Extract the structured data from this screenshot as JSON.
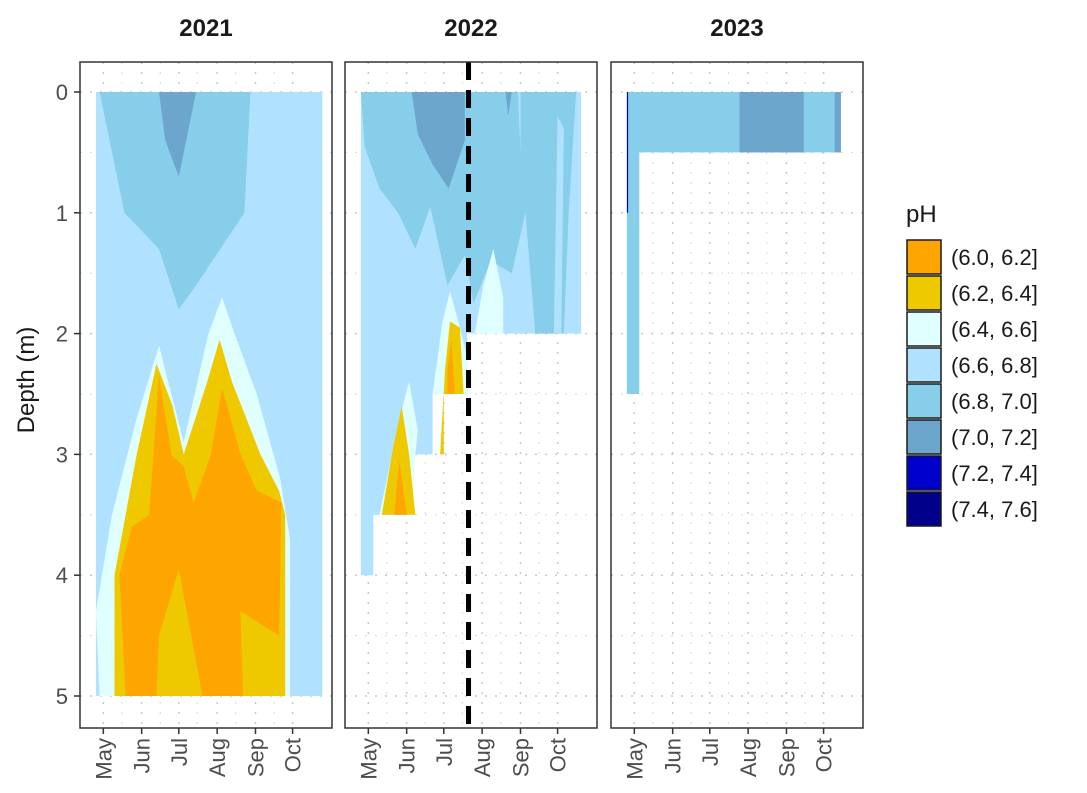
{
  "chart_data": {
    "type": "heatmap",
    "description_kind": "faceted filled contour plot",
    "ylabel": "Depth (m)",
    "y_axis": {
      "range": [
        0,
        5
      ],
      "reversed": true,
      "ticks": [
        0,
        1,
        2,
        3,
        4,
        5
      ]
    },
    "x_axis": {
      "months": [
        "May",
        "Jun",
        "Jul",
        "Aug",
        "Sep",
        "Oct"
      ]
    },
    "grid": "dotted",
    "legend": {
      "title": "pH",
      "position": "right",
      "bins": [
        {
          "label": "(6.0, 6.2]",
          "color": "#FFA500"
        },
        {
          "label": "(6.2, 6.4]",
          "color": "#EEC900"
        },
        {
          "label": "(6.4, 6.6]",
          "color": "#E0FFFF"
        },
        {
          "label": "(6.6, 6.8]",
          "color": "#B0E2FF"
        },
        {
          "label": "(6.8, 7.0]",
          "color": "#87CEEB"
        },
        {
          "label": "(7.0, 7.2]",
          "color": "#6CA6CD"
        },
        {
          "label": "(7.2, 7.4]",
          "color": "#0000CD"
        },
        {
          "label": "(7.4, 7.6]",
          "color": "#00008B"
        }
      ]
    },
    "panels": [
      {
        "title": "2021",
        "max_depth_by_date": [
          {
            "date": "2021-04-25",
            "depth": 5.0
          },
          {
            "date": "2021-10-25",
            "depth": 5.0
          }
        ],
        "regions": [
          {
            "ph_bin": "(6.6, 6.8]",
            "polygon": [
              [
                "2021-04-25",
                0
              ],
              [
                "2021-10-25",
                0
              ],
              [
                "2021-10-25",
                5
              ],
              [
                "2021-04-25",
                5
              ]
            ]
          },
          {
            "ph_bin": "(6.8, 7.0]",
            "polygon": [
              [
                "2021-04-28",
                0
              ],
              [
                "2021-08-28",
                0
              ],
              [
                "2021-08-23",
                1.0
              ],
              [
                "2021-07-15",
                1.6
              ],
              [
                "2021-07-01",
                1.8
              ],
              [
                "2021-06-15",
                1.3
              ],
              [
                "2021-05-18",
                1.0
              ],
              [
                "2021-05-08",
                0.5
              ]
            ]
          },
          {
            "ph_bin": "(7.0, 7.2]",
            "polygon": [
              [
                "2021-06-15",
                0
              ],
              [
                "2021-07-15",
                0
              ],
              [
                "2021-07-01",
                0.7
              ],
              [
                "2021-06-20",
                0.4
              ]
            ]
          },
          {
            "ph_bin": "(6.6, 6.8]",
            "polygon": [
              [
                "2021-09-17",
                0
              ],
              [
                "2021-09-20",
                0
              ],
              [
                "2021-09-18",
                0.35
              ]
            ]
          },
          {
            "ph_bin": "(6.4, 6.6]",
            "polygon": [
              [
                "2021-04-25",
                4.3
              ],
              [
                "2021-05-08",
                3.5
              ],
              [
                "2021-05-28",
                2.7
              ],
              [
                "2021-06-15",
                2.1
              ],
              [
                "2021-07-05",
                2.9
              ],
              [
                "2021-07-25",
                2.0
              ],
              [
                "2021-08-05",
                1.7
              ],
              [
                "2021-08-15",
                2.0
              ],
              [
                "2021-09-02",
                2.5
              ],
              [
                "2021-09-21",
                3.2
              ],
              [
                "2021-09-29",
                3.7
              ],
              [
                "2021-09-29",
                5.0
              ],
              [
                "2021-04-28",
                5.0
              ]
            ]
          },
          {
            "ph_bin": "(6.2, 6.4]",
            "polygon": [
              [
                "2021-05-10",
                4.0
              ],
              [
                "2021-05-28",
                3.0
              ],
              [
                "2021-06-13",
                2.25
              ],
              [
                "2021-06-26",
                2.6
              ],
              [
                "2021-07-05",
                3.0
              ],
              [
                "2021-07-24",
                2.4
              ],
              [
                "2021-08-03",
                2.05
              ],
              [
                "2021-08-13",
                2.4
              ],
              [
                "2021-09-05",
                3.0
              ],
              [
                "2021-09-20",
                3.3
              ],
              [
                "2021-09-25",
                3.5
              ],
              [
                "2021-09-25",
                5.0
              ],
              [
                "2021-05-10",
                5.0
              ]
            ]
          },
          {
            "ph_bin": "(6.0, 6.2]",
            "polygon": [
              [
                "2021-05-14",
                4.0
              ],
              [
                "2021-05-24",
                3.6
              ],
              [
                "2021-06-07",
                3.5
              ],
              [
                "2021-06-15",
                2.35
              ],
              [
                "2021-06-25",
                3.0
              ],
              [
                "2021-07-05",
                3.1
              ],
              [
                "2021-07-13",
                3.4
              ],
              [
                "2021-07-27",
                3.0
              ],
              [
                "2021-08-05",
                2.45
              ],
              [
                "2021-08-20",
                3.0
              ],
              [
                "2021-09-02",
                3.3
              ],
              [
                "2021-09-22",
                3.4
              ],
              [
                "2021-09-20",
                4.5
              ],
              [
                "2021-08-20",
                4.3
              ],
              [
                "2021-08-22",
                5.0
              ],
              [
                "2021-07-20",
                5.0
              ],
              [
                "2021-07-01",
                3.95
              ],
              [
                "2021-06-15",
                4.5
              ],
              [
                "2021-06-13",
                5.0
              ],
              [
                "2021-05-19",
                5.0
              ]
            ]
          },
          {
            "ph_bin": "(6.2, 6.4]",
            "polygon": [
              [
                "2021-06-20",
                4.5
              ],
              [
                "2021-07-01",
                3.95
              ],
              [
                "2021-07-20",
                5.0
              ],
              [
                "2021-06-20",
                5.0
              ]
            ]
          },
          {
            "ph_bin": "(6.2, 6.4]",
            "polygon": [
              [
                "2021-08-20",
                4.3
              ],
              [
                "2021-09-20",
                4.5
              ],
              [
                "2021-09-20",
                5.0
              ],
              [
                "2021-08-22",
                5.0
              ]
            ]
          }
        ]
      },
      {
        "title": "2022",
        "vertical_line_date": "2022-07-21",
        "max_depth_by_date": [
          {
            "date": "2022-04-25",
            "depth": 4.0
          },
          {
            "date": "2022-05-05",
            "depth": 3.5
          },
          {
            "date": "2022-06-05",
            "depth": 3.0
          },
          {
            "date": "2022-07-25",
            "depth": 2.0
          },
          {
            "date": "2022-10-20",
            "depth": 2.0
          }
        ],
        "regions": [
          {
            "ph_bin": "(6.6, 6.8]",
            "polygon": [
              [
                "2022-04-25",
                0
              ],
              [
                "2022-10-20",
                0
              ],
              [
                "2022-10-20",
                2.0
              ],
              [
                "2022-07-20",
                2.0
              ],
              [
                "2022-07-20",
                2.5
              ],
              [
                "2022-06-22",
                2.5
              ],
              [
                "2022-06-22",
                3.0
              ],
              [
                "2022-06-05",
                3.0
              ],
              [
                "2022-06-05",
                3.5
              ],
              [
                "2022-05-05",
                3.5
              ],
              [
                "2022-05-05",
                4.0
              ],
              [
                "2022-04-25",
                4.0
              ]
            ]
          },
          {
            "ph_bin": "(6.8, 7.0]",
            "polygon": [
              [
                "2022-04-25",
                0
              ],
              [
                "2022-10-16",
                0
              ],
              [
                "2022-10-10",
                1.0
              ],
              [
                "2022-10-06",
                2.0
              ],
              [
                "2022-09-13",
                2.0
              ],
              [
                "2022-09-05",
                1.0
              ],
              [
                "2022-08-25",
                1.5
              ],
              [
                "2022-08-08",
                1.4
              ],
              [
                "2022-07-25",
                1.75
              ],
              [
                "2022-07-18",
                1.35
              ],
              [
                "2022-07-04",
                1.6
              ],
              [
                "2022-06-20",
                0.95
              ],
              [
                "2022-06-08",
                1.3
              ],
              [
                "2022-05-25",
                1.0
              ],
              [
                "2022-05-10",
                0.8
              ],
              [
                "2022-04-28",
                0.45
              ]
            ]
          },
          {
            "ph_bin": "(7.0, 7.2]",
            "polygon": [
              [
                "2022-06-05",
                0
              ],
              [
                "2022-07-18",
                0
              ],
              [
                "2022-07-18",
                0.4
              ],
              [
                "2022-07-05",
                0.8
              ],
              [
                "2022-06-22",
                0.6
              ],
              [
                "2022-06-10",
                0.35
              ]
            ]
          },
          {
            "ph_bin": "(7.0, 7.2]",
            "polygon": [
              [
                "2022-08-20",
                0
              ],
              [
                "2022-08-25",
                0
              ],
              [
                "2022-08-22",
                0.2
              ]
            ]
          },
          {
            "ph_bin": "(6.6, 6.8]",
            "polygon": [
              [
                "2022-08-30",
                0
              ],
              [
                "2022-09-01",
                0
              ],
              [
                "2022-09-01",
                0.5
              ]
            ]
          },
          {
            "ph_bin": "(6.6, 6.8]",
            "polygon": [
              [
                "2022-10-01",
                0.2
              ],
              [
                "2022-10-06",
                0.3
              ],
              [
                "2022-10-04",
                2.0
              ],
              [
                "2022-09-28",
                2.0
              ]
            ]
          },
          {
            "ph_bin": "(6.4, 6.6]",
            "polygon": [
              [
                "2022-08-02",
                1.6
              ],
              [
                "2022-08-10",
                1.3
              ],
              [
                "2022-08-18",
                1.7
              ],
              [
                "2022-08-18",
                2.0
              ],
              [
                "2022-07-26",
                2.0
              ]
            ]
          },
          {
            "ph_bin": "(6.4, 6.6]",
            "polygon": [
              [
                "2022-05-10",
                3.5
              ],
              [
                "2022-05-25",
                2.75
              ],
              [
                "2022-06-03",
                2.4
              ],
              [
                "2022-06-10",
                2.8
              ],
              [
                "2022-06-08",
                3.0
              ],
              [
                "2022-06-05",
                3.5
              ]
            ]
          },
          {
            "ph_bin": "(6.4, 6.6]",
            "polygon": [
              [
                "2022-06-22",
                2.5
              ],
              [
                "2022-06-30",
                1.9
              ],
              [
                "2022-07-06",
                1.65
              ],
              [
                "2022-07-14",
                1.95
              ],
              [
                "2022-07-20",
                2.2
              ],
              [
                "2022-07-20",
                2.5
              ]
            ]
          },
          {
            "ph_bin": "(6.2, 6.4]",
            "polygon": [
              [
                "2022-05-12",
                3.5
              ],
              [
                "2022-05-20",
                3.0
              ],
              [
                "2022-05-28",
                2.6
              ],
              [
                "2022-06-03",
                3.0
              ],
              [
                "2022-06-08",
                3.5
              ]
            ]
          },
          {
            "ph_bin": "(6.0, 6.2]",
            "polygon": [
              [
                "2022-05-22",
                3.5
              ],
              [
                "2022-05-26",
                3.05
              ],
              [
                "2022-06-01",
                3.5
              ]
            ]
          },
          {
            "ph_bin": "(6.2, 6.4]",
            "polygon": [
              [
                "2022-06-28",
                3.0
              ],
              [
                "2022-07-02",
                2.3
              ],
              [
                "2022-07-06",
                1.9
              ],
              [
                "2022-07-14",
                1.95
              ],
              [
                "2022-07-17",
                2.5
              ],
              [
                "2022-07-01",
                2.5
              ],
              [
                "2022-07-01",
                3.0
              ]
            ]
          },
          {
            "ph_bin": "(6.0, 6.2]",
            "polygon": [
              [
                "2022-07-04",
                2.3
              ],
              [
                "2022-07-07",
                2.05
              ],
              [
                "2022-07-10",
                2.5
              ],
              [
                "2022-07-04",
                2.5
              ]
            ]
          }
        ]
      },
      {
        "title": "2023",
        "max_depth_by_date": [
          {
            "date": "2023-04-25",
            "depth": 2.5
          },
          {
            "date": "2023-05-05",
            "depth": 2.5
          },
          {
            "date": "2023-05-05",
            "depth": 0.5
          },
          {
            "date": "2023-10-15",
            "depth": 0.5
          }
        ],
        "regions": [
          {
            "ph_bin": "(6.8, 7.0]",
            "polygon": [
              [
                "2023-04-25",
                0
              ],
              [
                "2023-10-15",
                0
              ],
              [
                "2023-10-15",
                0.5
              ],
              [
                "2023-05-05",
                0.5
              ],
              [
                "2023-05-05",
                2.5
              ],
              [
                "2023-04-25",
                2.5
              ]
            ]
          },
          {
            "ph_bin": "(7.0, 7.2]",
            "polygon": [
              [
                "2023-07-25",
                0
              ],
              [
                "2023-09-15",
                0
              ],
              [
                "2023-09-15",
                0.5
              ],
              [
                "2023-07-25",
                0.5
              ]
            ]
          },
          {
            "ph_bin": "(7.0, 7.2]",
            "polygon": [
              [
                "2023-10-10",
                0
              ],
              [
                "2023-10-15",
                0
              ],
              [
                "2023-10-15",
                0.5
              ],
              [
                "2023-10-10",
                0.5
              ]
            ]
          },
          {
            "ph_bin": "(7.2, 7.4]",
            "polygon": [
              [
                "2023-04-25",
                0
              ],
              [
                "2023-04-26",
                0
              ],
              [
                "2023-04-26",
                1.0
              ],
              [
                "2023-04-25",
                1.0
              ]
            ]
          },
          {
            "ph_bin": "(6.8, 7.0]",
            "polygon": [
              [
                "2023-04-25",
                0.0
              ],
              [
                "2023-04-25",
                0.1
              ],
              [
                "2023-04-25",
                0.1
              ]
            ]
          }
        ]
      }
    ]
  }
}
